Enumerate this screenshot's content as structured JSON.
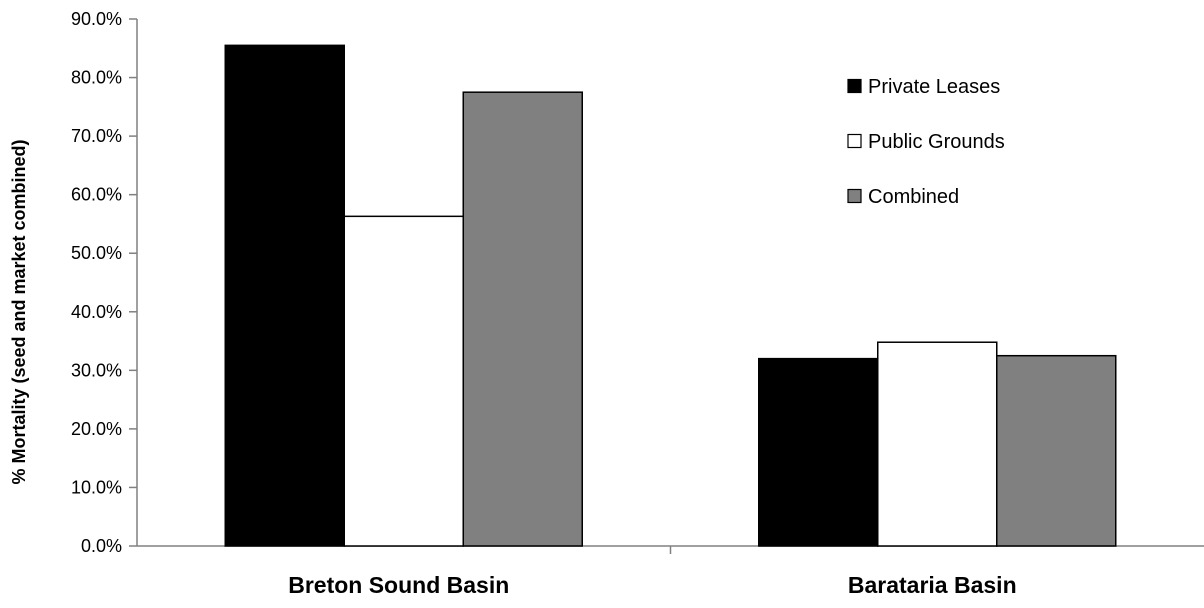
{
  "chart_data": {
    "type": "bar",
    "categories": [
      "Breton Sound Basin",
      "Barataria Basin"
    ],
    "series": [
      {
        "name": "Private Leases",
        "values": [
          85.5,
          32.0
        ],
        "color": "#000000"
      },
      {
        "name": "Public Grounds",
        "values": [
          56.3,
          34.8
        ],
        "color": "#ffffff"
      },
      {
        "name": "Combined",
        "values": [
          77.5,
          32.5
        ],
        "color": "#808080"
      }
    ],
    "title": "",
    "xlabel": "",
    "ylabel": "% Mortality (seed and market combined)",
    "ylim": [
      0,
      90
    ],
    "yticks": [
      0,
      10,
      20,
      30,
      40,
      50,
      60,
      70,
      80,
      90
    ],
    "ytick_labels": [
      "0.0%",
      "10.0%",
      "20.0%",
      "30.0%",
      "40.0%",
      "50.0%",
      "60.0%",
      "70.0%",
      "80.0%",
      "90.0%"
    ],
    "grid": false,
    "legend_position": "top-right",
    "bar_outline_color": "#000000",
    "axis_color": "#808080"
  }
}
